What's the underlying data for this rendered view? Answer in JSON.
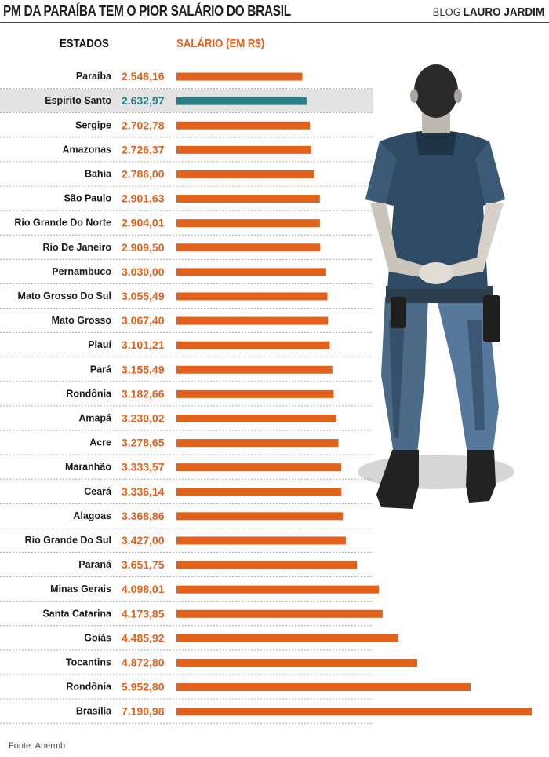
{
  "header": {
    "title": "PM DA PARAÍBA TEM O PIOR SALÁRIO DO BRASIL",
    "brand_prefix": "BLOG",
    "brand_name": "LAURO JARDIM"
  },
  "columns": {
    "states": "ESTADOS",
    "salary": "SALÁRIO (EM R$)"
  },
  "source": "Fonte: Anermb",
  "colors": {
    "bar": "#e2621c",
    "highlight_bar": "#2a7f86",
    "highlight_row": "#e3e3e3"
  },
  "figure": "police-officer-illustration",
  "chart_data": {
    "type": "bar",
    "orientation": "horizontal",
    "title": "PM DA PARAÍBA TEM O PIOR SALÁRIO DO BRASIL",
    "xlabel": "SALÁRIO (EM R$)",
    "ylabel": "ESTADOS",
    "highlight": "Espirito Santo",
    "categories": [
      "Paraíba",
      "Espirito Santo",
      "Sergipe",
      "Amazonas",
      "Bahia",
      "São Paulo",
      "Rio Grande Do Norte",
      "Rio De Janeiro",
      "Pernambuco",
      "Mato Grosso Do Sul",
      "Mato Grosso",
      "Piauí",
      "Pará",
      "Rondônia",
      "Amapá",
      "Acre",
      "Maranhão",
      "Ceará",
      "Alagoas",
      "Rio Grande Do Sul",
      "Paraná",
      "Minas Gerais",
      "Santa Catarina",
      "Goiás",
      "Tocantins",
      "Rondônia",
      "Brasília"
    ],
    "values": [
      2548.16,
      2632.97,
      2702.78,
      2726.37,
      2786.0,
      2901.63,
      2904.01,
      2909.5,
      3030.0,
      3055.49,
      3067.4,
      3101.21,
      3155.49,
      3182.66,
      3230.02,
      3278.65,
      3333.57,
      3336.14,
      3368.86,
      3427.0,
      3651.75,
      4098.01,
      4173.85,
      4485.92,
      4872.8,
      5952.8,
      7190.98
    ],
    "labels": [
      "2.548,16",
      "2.632,97",
      "2.702,78",
      "2.726,37",
      "2.786,00",
      "2.901,63",
      "2.904,01",
      "2.909,50",
      "3.030,00",
      "3.055,49",
      "3.067,40",
      "3.101,21",
      "3.155,49",
      "3.182,66",
      "3.230,02",
      "3.278,65",
      "3.333,57",
      "3.336,14",
      "3.368,86",
      "3.427,00",
      "3.651,75",
      "4.098,01",
      "4.173,85",
      "4.485,92",
      "4.872,80",
      "5.952,80",
      "7.190,98"
    ],
    "xlim": [
      0,
      7190.98
    ]
  }
}
